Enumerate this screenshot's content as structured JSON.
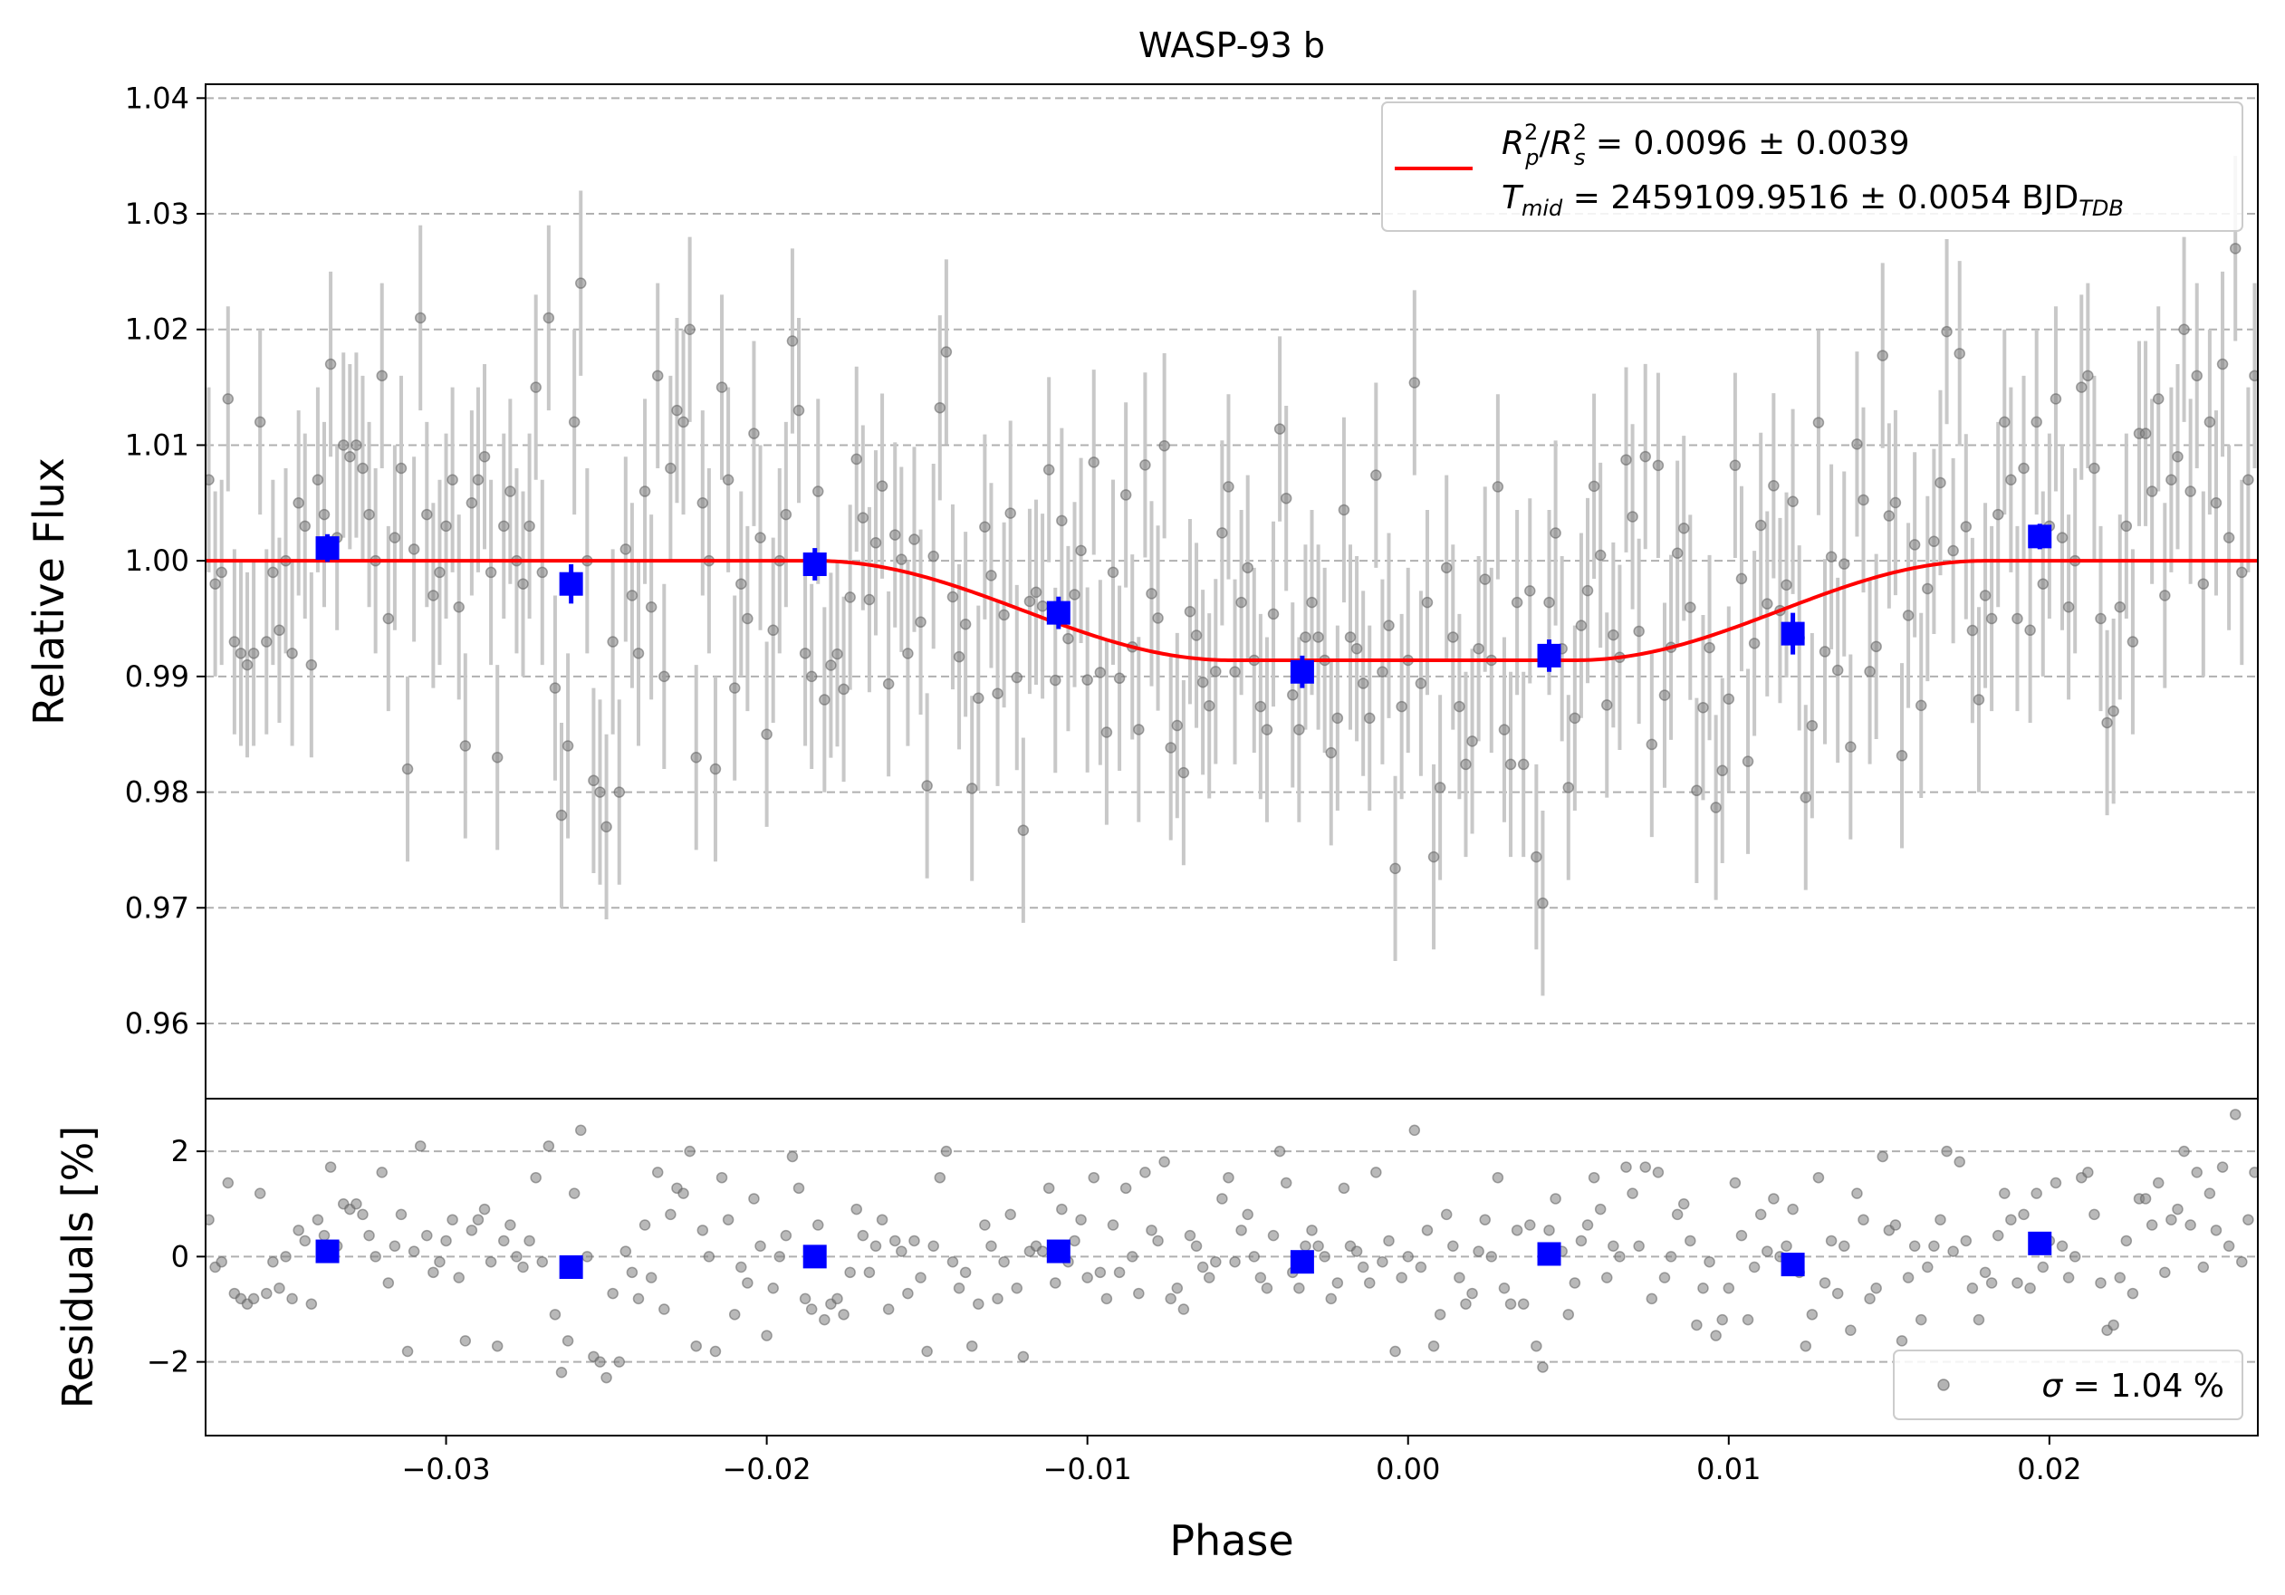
{
  "chart_data": {
    "type": "scatter",
    "title": "WASP-93 b",
    "xlabel": "Phase",
    "xlim": [
      -0.0375,
      0.0265
    ],
    "xticks": [
      -0.03,
      -0.02,
      -0.01,
      0.0,
      0.01,
      0.02
    ],
    "xtick_labels": [
      "−0.03",
      "−0.02",
      "−0.01",
      "0.00",
      "0.01",
      "0.02"
    ],
    "grid": "horizontal dashed",
    "colors": {
      "raw": "#808080",
      "errorbar": "#c8c8c8",
      "binned": "#0000ff",
      "model": "#ff0000"
    },
    "top_panel": {
      "ylabel": "Relative Flux",
      "ylim": [
        0.9535,
        1.0412
      ],
      "yticks": [
        0.96,
        0.97,
        0.98,
        0.99,
        1.0,
        1.01,
        1.02,
        1.03,
        1.04
      ],
      "ytick_labels": [
        "0.96",
        "0.97",
        "0.98",
        "0.99",
        "1.00",
        "1.01",
        "1.02",
        "1.03",
        "1.04"
      ],
      "model": {
        "baseline": 1.0,
        "depth": 0.0086,
        "ingress": [
          -0.0185,
          -0.0055
        ],
        "egress": [
          0.0052,
          0.018
        ]
      },
      "binned": {
        "x": [
          -0.0337,
          -0.0261,
          -0.0185,
          -0.0109,
          -0.0033,
          0.0044,
          0.012,
          0.0197
        ],
        "y": [
          1.0011,
          0.998,
          0.9997,
          0.9955,
          0.9904,
          0.9918,
          0.9937,
          1.0021
        ],
        "err": [
          0.0012,
          0.0017,
          0.0014,
          0.0014,
          0.0014,
          0.0014,
          0.0018,
          0.0011
        ]
      },
      "legend": {
        "position": "top-right",
        "line1": {
          "sym1": "R",
          "sub1": "p",
          "sup1": "2",
          "slash": "/",
          "sym2": "R",
          "sub2": "s",
          "sup2": "2",
          "value": " = 0.0096 ± 0.0039"
        },
        "line2": {
          "sym": "T",
          "sub": "mid",
          "value": " = 2459109.9516 ± 0.0054 BJD",
          "unit_sub": "TDB"
        }
      }
    },
    "bottom_panel": {
      "ylabel": "Residuals [%]",
      "ylim": [
        -3.4,
        3.0
      ],
      "yticks": [
        -2,
        0,
        2
      ],
      "ytick_labels": [
        "−2",
        "0",
        "2"
      ],
      "binned": {
        "x": [
          -0.0337,
          -0.0261,
          -0.0185,
          -0.0109,
          -0.0033,
          0.0044,
          0.012,
          0.0197
        ],
        "y": [
          0.1,
          -0.2,
          0.0,
          0.1,
          -0.1,
          0.05,
          -0.15,
          0.25
        ]
      },
      "legend": {
        "position": "bottom-right",
        "sym": "σ",
        "value": " = 1.04 %"
      }
    },
    "raw_points": {
      "x": [
        -0.0374,
        -0.0372,
        -0.037,
        -0.0368,
        -0.0366,
        -0.0364,
        -0.0362,
        -0.036,
        -0.0358,
        -0.0356,
        -0.0354,
        -0.0352,
        -0.035,
        -0.0348,
        -0.0346,
        -0.0344,
        -0.0342,
        -0.034,
        -0.0338,
        -0.0336,
        -0.0334,
        -0.0332,
        -0.033,
        -0.0328,
        -0.0326,
        -0.0324,
        -0.0322,
        -0.032,
        -0.0318,
        -0.0316,
        -0.0314,
        -0.0312,
        -0.031,
        -0.0308,
        -0.0306,
        -0.0304,
        -0.0302,
        -0.03,
        -0.0298,
        -0.0296,
        -0.0294,
        -0.0292,
        -0.029,
        -0.0288,
        -0.0286,
        -0.0284,
        -0.0282,
        -0.028,
        -0.0278,
        -0.0276,
        -0.0274,
        -0.0272,
        -0.027,
        -0.0268,
        -0.0266,
        -0.0264,
        -0.0262,
        -0.026,
        -0.0258,
        -0.0256,
        -0.0254,
        -0.0252,
        -0.025,
        -0.0248,
        -0.0246,
        -0.0244,
        -0.0242,
        -0.024,
        -0.0238,
        -0.0236,
        -0.0234,
        -0.0232,
        -0.023,
        -0.0228,
        -0.0226,
        -0.0224,
        -0.0222,
        -0.022,
        -0.0218,
        -0.0216,
        -0.0214,
        -0.0212,
        -0.021,
        -0.0208,
        -0.0206,
        -0.0204,
        -0.0202,
        -0.02,
        -0.0198,
        -0.0196,
        -0.0194,
        -0.0192,
        -0.019,
        -0.0188,
        -0.0186,
        -0.0184,
        -0.0182,
        -0.018,
        -0.0178,
        -0.0176,
        -0.0174,
        -0.0172,
        -0.017,
        -0.0168,
        -0.0166,
        -0.0164,
        -0.0162,
        -0.016,
        -0.0158,
        -0.0156,
        -0.0154,
        -0.0152,
        -0.015,
        -0.0148,
        -0.0146,
        -0.0144,
        -0.0142,
        -0.014,
        -0.0138,
        -0.0136,
        -0.0134,
        -0.0132,
        -0.013,
        -0.0128,
        -0.0126,
        -0.0124,
        -0.0122,
        -0.012,
        -0.0118,
        -0.0116,
        -0.0114,
        -0.0112,
        -0.011,
        -0.0108,
        -0.0106,
        -0.0104,
        -0.0102,
        -0.01,
        -0.0098,
        -0.0096,
        -0.0094,
        -0.0092,
        -0.009,
        -0.0088,
        -0.0086,
        -0.0084,
        -0.0082,
        -0.008,
        -0.0078,
        -0.0076,
        -0.0074,
        -0.0072,
        -0.007,
        -0.0068,
        -0.0066,
        -0.0064,
        -0.0062,
        -0.006,
        -0.0058,
        -0.0056,
        -0.0054,
        -0.0052,
        -0.005,
        -0.0048,
        -0.0046,
        -0.0044,
        -0.0042,
        -0.004,
        -0.0038,
        -0.0036,
        -0.0034,
        -0.0032,
        -0.003,
        -0.0028,
        -0.0026,
        -0.0024,
        -0.0022,
        -0.002,
        -0.0018,
        -0.0016,
        -0.0014,
        -0.0012,
        -0.001,
        -0.0008,
        -0.0006,
        -0.0004,
        -0.0002,
        0.0,
        0.0002,
        0.0004,
        0.0006,
        0.0008,
        0.001,
        0.0012,
        0.0014,
        0.0016,
        0.0018,
        0.002,
        0.0022,
        0.0024,
        0.0026,
        0.0028,
        0.003,
        0.0032,
        0.0034,
        0.0036,
        0.0038,
        0.004,
        0.0042,
        0.0044,
        0.0046,
        0.0048,
        0.005,
        0.0052,
        0.0054,
        0.0056,
        0.0058,
        0.006,
        0.0062,
        0.0064,
        0.0066,
        0.0068,
        0.007,
        0.0072,
        0.0074,
        0.0076,
        0.0078,
        0.008,
        0.0082,
        0.0084,
        0.0086,
        0.0088,
        0.009,
        0.0092,
        0.0094,
        0.0096,
        0.0098,
        0.01,
        0.0102,
        0.0104,
        0.0106,
        0.0108,
        0.011,
        0.0112,
        0.0114,
        0.0116,
        0.0118,
        0.012,
        0.0122,
        0.0124,
        0.0126,
        0.0128,
        0.013,
        0.0132,
        0.0134,
        0.0136,
        0.0138,
        0.014,
        0.0142,
        0.0144,
        0.0146,
        0.0148,
        0.015,
        0.0152,
        0.0154,
        0.0156,
        0.0158,
        0.016,
        0.0162,
        0.0164,
        0.0166,
        0.0168,
        0.017,
        0.0172,
        0.0174,
        0.0176,
        0.0178,
        0.018,
        0.0182,
        0.0184,
        0.0186,
        0.0188,
        0.019,
        0.0192,
        0.0194,
        0.0196,
        0.0198,
        0.02,
        0.0202,
        0.0204,
        0.0206,
        0.0208,
        0.021,
        0.0212,
        0.0214,
        0.0216,
        0.0218,
        0.022,
        0.0222,
        0.0224,
        0.0226,
        0.0228,
        0.023,
        0.0232,
        0.0234,
        0.0236,
        0.0238,
        0.024,
        0.0242,
        0.0244,
        0.0246,
        0.0248,
        0.025,
        0.0252,
        0.0254,
        0.0256,
        0.0258,
        0.026,
        0.0262,
        0.0264
      ],
      "resid": [
        0.7,
        -0.2,
        -0.1,
        1.4,
        -0.7,
        -0.8,
        -0.9,
        -0.8,
        1.2,
        -0.7,
        -0.1,
        -0.6,
        0.0,
        -0.8,
        0.5,
        0.3,
        -0.9,
        0.7,
        0.4,
        1.7,
        0.2,
        1.0,
        0.9,
        1.0,
        0.8,
        0.4,
        0.0,
        1.6,
        -0.5,
        0.2,
        0.8,
        -1.8,
        0.1,
        2.1,
        0.4,
        -0.3,
        -0.1,
        0.3,
        0.7,
        -0.4,
        -1.6,
        0.5,
        0.7,
        0.9,
        -0.1,
        -1.7,
        0.3,
        0.6,
        0.0,
        -0.2,
        0.3,
        1.5,
        -0.1,
        2.1,
        -1.1,
        -2.2,
        -1.6,
        1.2,
        2.4,
        0.0,
        -1.9,
        -2.0,
        -2.3,
        -0.7,
        -2.0,
        0.1,
        -0.3,
        -0.8,
        0.6,
        -0.4,
        1.6,
        -1.0,
        0.8,
        1.3,
        1.2,
        2.0,
        -1.7,
        0.5,
        0.0,
        -1.8,
        1.5,
        0.7,
        -1.1,
        -0.2,
        -0.5,
        1.1,
        0.2,
        -1.5,
        -0.6,
        0.0,
        0.4,
        1.9,
        1.3,
        -0.8,
        -1.0,
        0.6,
        -1.2,
        -0.9,
        -0.8,
        -1.1,
        -0.3,
        0.9,
        0.4,
        -0.3,
        0.2,
        0.7,
        -1.0,
        0.3,
        0.1,
        -0.7,
        0.3,
        -0.4,
        -1.8,
        0.2,
        1.5,
        2.0,
        -0.1,
        -0.6,
        -0.3,
        -1.7,
        -0.9,
        0.6,
        0.2,
        -0.8,
        -0.1,
        0.8,
        -0.6,
        -1.9,
        0.1,
        0.2,
        0.1,
        1.3,
        -0.5,
        0.9,
        -0.1,
        0.3,
        0.7,
        -0.4,
        1.5,
        -0.3,
        -0.8,
        0.6,
        -0.3,
        1.3,
        0.0,
        -0.7,
        1.6,
        0.5,
        0.3,
        1.8,
        -0.8,
        -0.6,
        -1.0,
        0.4,
        0.2,
        -0.2,
        -0.4,
        -0.1,
        1.1,
        1.5,
        -0.1,
        0.5,
        0.8,
        0.0,
        -0.4,
        -0.6,
        0.4,
        2.0,
        1.4,
        -0.3,
        -0.6,
        0.2,
        0.5,
        0.2,
        0.0,
        -0.8,
        -0.5,
        1.3,
        0.2,
        0.1,
        -0.2,
        -0.5,
        1.6,
        -0.1,
        0.3,
        -1.8,
        -0.4,
        0.0,
        2.4,
        -0.2,
        0.5,
        -1.7,
        -1.1,
        0.8,
        0.2,
        -0.4,
        -0.9,
        -0.7,
        0.1,
        0.7,
        0.0,
        1.5,
        -0.6,
        -0.9,
        0.5,
        -0.9,
        0.6,
        -1.7,
        -2.1,
        0.5,
        1.1,
        0.1,
        -1.1,
        -0.5,
        0.3,
        0.6,
        1.5,
        0.9,
        -0.4,
        0.2,
        0.0,
        1.7,
        1.2,
        0.2,
        1.7,
        -0.8,
        1.6,
        -0.4,
        0.0,
        0.8,
        1.0,
        0.3,
        -1.3,
        -0.6,
        -0.1,
        -1.5,
        -1.2,
        -0.6,
        1.4,
        0.4,
        -1.2,
        -0.2,
        0.8,
        0.1,
        1.1,
        0.0,
        0.2,
        0.9,
        -0.3,
        -1.7,
        -1.1,
        1.5,
        -0.5,
        0.3,
        -0.7,
        0.2,
        -1.4,
        1.2,
        0.7,
        -0.8,
        -0.6,
        1.9,
        0.5,
        0.6,
        -1.6,
        -0.4,
        0.2,
        -1.2,
        -0.2,
        0.2,
        0.7,
        2.0,
        0.1,
        1.8,
        0.3,
        -0.6,
        -1.2,
        -0.3,
        -0.5,
        0.4,
        1.2,
        0.7,
        -0.5,
        0.8,
        -0.6,
        1.2,
        -0.2,
        0.3,
        1.4,
        0.2,
        -0.4,
        0.0,
        1.5,
        1.6,
        0.8,
        -0.5,
        -1.4,
        -1.3,
        -0.4,
        0.3,
        -0.7,
        1.1,
        1.1,
        0.6,
        1.4,
        -0.3,
        0.7,
        0.9,
        2.0,
        0.6,
        1.6,
        -0.2,
        1.2,
        0.5,
        1.7,
        0.2,
        2.7,
        -0.1,
        0.7,
        1.6,
        -1.4,
        1.7,
        1.0,
        -1.6,
        -1.8,
        1.1,
        -0.3,
        -1.7,
        -0.2
      ],
      "errbar_halflength_pct": 0.8
    }
  }
}
